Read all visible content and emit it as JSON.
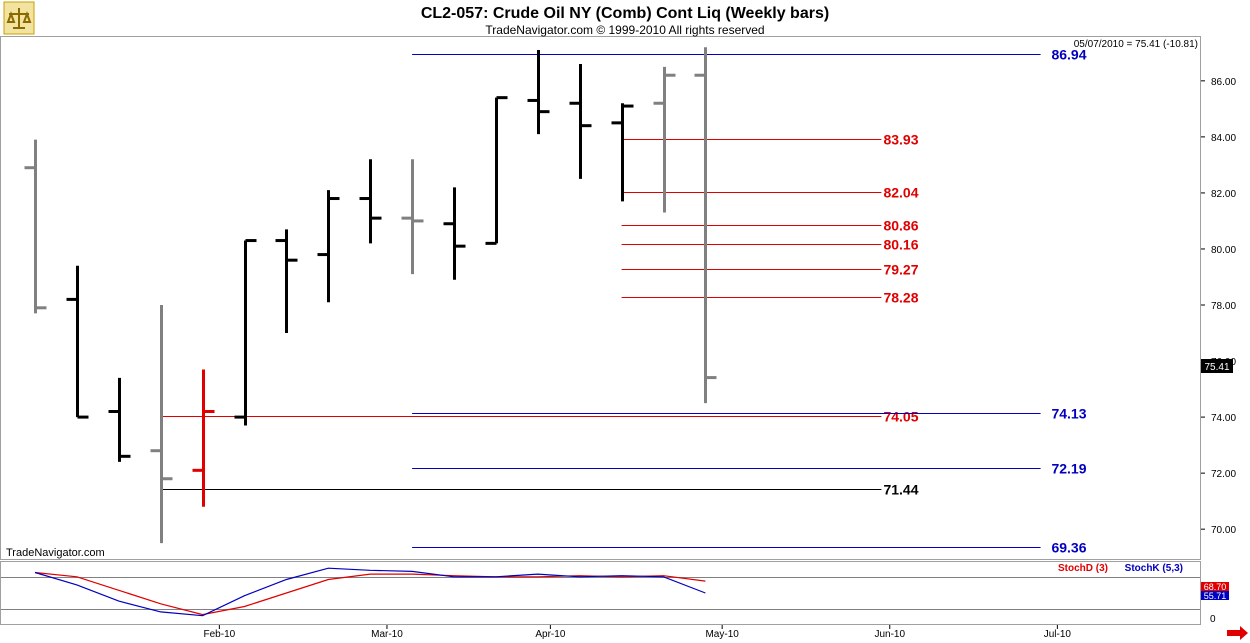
{
  "header": {
    "title": "CL2-057:  Crude Oil NY (Comb) Cont Liq  (Weekly bars)",
    "copyright": "TradeNavigator.com © 1999-2010 All rights reserved",
    "last_readout": "05/07/2010 = 75.41 (-10.81)",
    "watermark": "TradeNavigator.com"
  },
  "colors": {
    "up_bar": "#000000",
    "down_bar": "#808080",
    "highlight_bar": "#e00000",
    "retracement_red": "#e00000",
    "projection_blue": "#0000c0",
    "stoch_d": "#e00000",
    "stoch_k": "#0000c0",
    "price_tag_bg": "#000000",
    "nav_arrow": "#e00000"
  },
  "chart_data": [
    {
      "type": "ohlc",
      "name": "Crude Oil NY (Comb) Cont Liq",
      "ylim": [
        68.9,
        87.6
      ],
      "y_ticks": [
        70,
        72,
        74,
        76,
        78,
        80,
        82,
        84,
        86
      ],
      "y_tick_labels": [
        "70.00",
        "72.00",
        "74.00",
        "76.00",
        "78.00",
        "80.00",
        "82.00",
        "84.00",
        "86.00"
      ],
      "x_labels": [
        {
          "label": "Feb-10",
          "week": 4.4
        },
        {
          "label": "Mar-10",
          "week": 8.4
        },
        {
          "label": "Apr-10",
          "week": 12.3
        },
        {
          "label": "May-10",
          "week": 16.4
        },
        {
          "label": "Jun-10",
          "week": 20.4
        },
        {
          "label": "Jul-10",
          "week": 24.4
        }
      ],
      "bars": [
        {
          "o": 82.9,
          "h": 83.9,
          "l": 77.7,
          "c": 77.9,
          "color": "down"
        },
        {
          "o": 78.2,
          "h": 79.4,
          "l": 74.0,
          "c": 74.0,
          "color": "up"
        },
        {
          "o": 74.2,
          "h": 75.4,
          "l": 72.4,
          "c": 72.6,
          "color": "up"
        },
        {
          "o": 72.8,
          "h": 78.0,
          "l": 69.5,
          "c": 71.8,
          "color": "down"
        },
        {
          "o": 72.1,
          "h": 75.7,
          "l": 70.8,
          "c": 74.2,
          "color": "highlight"
        },
        {
          "o": 74.0,
          "h": 80.3,
          "l": 73.7,
          "c": 80.3,
          "color": "up"
        },
        {
          "o": 80.3,
          "h": 80.7,
          "l": 77.0,
          "c": 79.6,
          "color": "up"
        },
        {
          "o": 79.8,
          "h": 82.1,
          "l": 78.1,
          "c": 81.8,
          "color": "up"
        },
        {
          "o": 81.8,
          "h": 83.2,
          "l": 80.2,
          "c": 81.1,
          "color": "up"
        },
        {
          "o": 81.1,
          "h": 83.2,
          "l": 79.1,
          "c": 81.0,
          "color": "down"
        },
        {
          "o": 80.9,
          "h": 82.2,
          "l": 78.9,
          "c": 80.1,
          "color": "up"
        },
        {
          "o": 80.2,
          "h": 85.4,
          "l": 80.2,
          "c": 85.4,
          "color": "up"
        },
        {
          "o": 85.3,
          "h": 87.1,
          "l": 84.1,
          "c": 84.9,
          "color": "up"
        },
        {
          "o": 85.2,
          "h": 86.6,
          "l": 82.5,
          "c": 84.4,
          "color": "up"
        },
        {
          "o": 84.5,
          "h": 85.2,
          "l": 81.7,
          "c": 85.1,
          "color": "up"
        },
        {
          "o": 85.2,
          "h": 86.5,
          "l": 81.3,
          "c": 86.2,
          "color": "down"
        },
        {
          "o": 86.2,
          "h": 87.2,
          "l": 74.5,
          "c": 75.41,
          "color": "down"
        }
      ],
      "levels": [
        {
          "value": 86.94,
          "label": "86.94",
          "color": "blue",
          "from_week": 9.0,
          "to_week": 24.0
        },
        {
          "value": 83.93,
          "label": "83.93",
          "color": "red",
          "from_week": 14.0,
          "to_week": 20.2
        },
        {
          "value": 82.04,
          "label": "82.04",
          "color": "red",
          "from_week": 14.0,
          "to_week": 20.2
        },
        {
          "value": 80.86,
          "label": "80.86",
          "color": "red",
          "from_week": 14.0,
          "to_week": 20.2
        },
        {
          "value": 80.16,
          "label": "80.16",
          "color": "red",
          "from_week": 14.0,
          "to_week": 20.2
        },
        {
          "value": 79.27,
          "label": "79.27",
          "color": "red",
          "from_week": 14.0,
          "to_week": 20.2
        },
        {
          "value": 78.28,
          "label": "78.28",
          "color": "red",
          "from_week": 14.0,
          "to_week": 20.2
        },
        {
          "value": 74.05,
          "label": "74.05",
          "color": "red",
          "from_week": 3.0,
          "to_week": 20.2
        },
        {
          "value": 74.13,
          "label": "74.13",
          "color": "blue",
          "from_week": 9.0,
          "to_week": 24.0
        },
        {
          "value": 72.19,
          "label": "72.19",
          "color": "blue",
          "from_week": 9.0,
          "to_week": 24.0
        },
        {
          "value": 71.44,
          "label": "71.44",
          "color": "black",
          "from_week": 3.0,
          "to_week": 20.2
        },
        {
          "value": 69.36,
          "label": "69.36",
          "color": "blue",
          "from_week": 9.0,
          "to_week": 24.0
        }
      ],
      "last_price_tag": "75.41"
    },
    {
      "type": "line",
      "name": "Stochastic",
      "ylim": [
        0,
        100
      ],
      "y_tick_labels": [
        "0"
      ],
      "bands": [
        80,
        20
      ],
      "legend": [
        "StochD (3)",
        "StochK (5,3)"
      ],
      "series": [
        {
          "name": "StochD (3)",
          "color": "red",
          "values": [
            88,
            80,
            55,
            30,
            10,
            25,
            50,
            75,
            85,
            85,
            82,
            80,
            80,
            82,
            80,
            82,
            72
          ]
        },
        {
          "name": "StochK (5,3)",
          "color": "blue",
          "values": [
            88,
            65,
            35,
            15,
            8,
            45,
            75,
            96,
            92,
            90,
            80,
            80,
            85,
            80,
            82,
            80,
            50
          ]
        }
      ],
      "value_tags": [
        "68.70",
        "55.71"
      ]
    }
  ]
}
